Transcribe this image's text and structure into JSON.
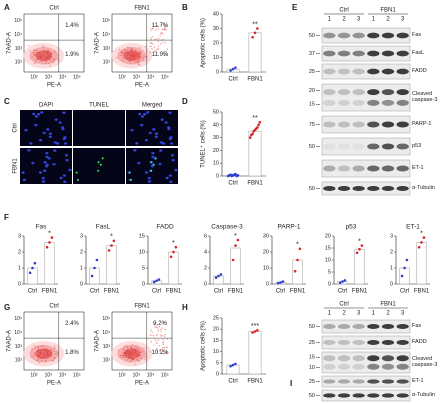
{
  "panel_labels": [
    "A",
    "B",
    "C",
    "D",
    "E",
    "F",
    "G",
    "H",
    "I"
  ],
  "flow_axes": {
    "x_label": "PE-A",
    "y_label": "7AAD-A",
    "ticks": [
      "10²",
      "10³",
      "10⁴",
      "10⁵"
    ]
  },
  "flow_plots": [
    {
      "title": "Ctrl",
      "upper_right": "1.4%",
      "lower_right": "1.9%"
    },
    {
      "title": "FBN1",
      "upper_right": "11.7%",
      "lower_right": "11.0%"
    },
    {
      "title": "Ctrl",
      "upper_right": "2.4%",
      "lower_right": "1.8%"
    },
    {
      "title": "FBN1",
      "upper_right": "9.2%",
      "lower_right": "10.2%"
    }
  ],
  "microscopy": {
    "columns": [
      "DAPI",
      "TUNEL",
      "Merged"
    ],
    "rows": [
      "Ctrl",
      "FBN1"
    ]
  },
  "blots": [
    {
      "groups": [
        "Ctrl",
        "FBN1"
      ],
      "lanes": [
        "1",
        "2",
        "3",
        "1",
        "2",
        "3"
      ],
      "rows": [
        {
          "label": "Fas",
          "markers": [
            50
          ]
        },
        {
          "label": "FasL",
          "markers": [
            37
          ]
        },
        {
          "label": "FADD",
          "markers": [
            25
          ]
        },
        {
          "label": "Cleaved caspase-3",
          "markers": [
            20,
            15
          ]
        },
        {
          "label": "PARP-1",
          "markers": [
            75
          ]
        },
        {
          "label": "p53",
          "markers": [
            50
          ]
        },
        {
          "label": "ET-1"
        },
        {
          "label": "α-Tubulin",
          "markers": [
            50
          ]
        }
      ]
    },
    {
      "groups": [
        "Ctrl",
        "FBN1"
      ],
      "lanes": [
        "1",
        "2",
        "3",
        "1",
        "2",
        "3"
      ],
      "rows": [
        {
          "label": "Fas",
          "markers": [
            50
          ]
        },
        {
          "label": "FADD",
          "markers": [
            25
          ]
        },
        {
          "label": "Cleaved caspase-3",
          "markers": [
            15,
            10
          ]
        },
        {
          "label": "ET-1",
          "markers": [
            25
          ]
        },
        {
          "label": "α-Tubulin",
          "markers": [
            50
          ]
        }
      ]
    }
  ],
  "chart_data": [
    {
      "type": "bar",
      "y_label": "Apoptotic cells (%)",
      "categories": [
        "Ctrl",
        "FBN1"
      ],
      "values": [
        2,
        27
      ],
      "points": [
        [
          1,
          2,
          3
        ],
        [
          24,
          27,
          30
        ]
      ],
      "colors": [
        "#2d3fcc",
        "#d7262b"
      ],
      "ylim": [
        0,
        40
      ],
      "yticks": [
        0,
        10,
        20,
        30,
        40
      ],
      "annotation": "**"
    },
    {
      "type": "bar",
      "y_label": "TUNEL⁺ cells (%)",
      "categories": [
        "Ctrl",
        "FBN1"
      ],
      "values": [
        0.6,
        35
      ],
      "points": [
        [
          0,
          0.5,
          1,
          0,
          0.5,
          1,
          1.5,
          0,
          0.5
        ],
        [
          30,
          32,
          33,
          35,
          36,
          37,
          38,
          40,
          42
        ]
      ],
      "colors": [
        "#2d3fcc",
        "#d7262b"
      ],
      "ylim": [
        0,
        50
      ],
      "yticks": [
        0,
        10,
        20,
        30,
        40,
        50
      ],
      "annotation": "**"
    },
    {
      "type": "bar",
      "title": "Fas",
      "categories": [
        "Ctrl",
        "FBN1"
      ],
      "values": [
        1,
        2.6
      ],
      "points": [
        [
          0.7,
          1,
          1.3
        ],
        [
          2.3,
          2.6,
          2.9
        ]
      ],
      "colors": [
        "#2d3fcc",
        "#d7262b"
      ],
      "ylim": [
        0,
        3
      ],
      "yticks": [
        0,
        1,
        2,
        3
      ],
      "annotation": "*"
    },
    {
      "type": "bar",
      "title": "FasL",
      "categories": [
        "Ctrl",
        "FBN1"
      ],
      "values": [
        1,
        2.4
      ],
      "points": [
        [
          0.5,
          1,
          1.5
        ],
        [
          2.1,
          2.4,
          2.7
        ]
      ],
      "colors": [
        "#2d3fcc",
        "#d7262b"
      ],
      "ylim": [
        0,
        3
      ],
      "yticks": [
        0,
        1,
        2,
        3
      ],
      "annotation": "*"
    },
    {
      "type": "bar",
      "title": "FADD",
      "categories": [
        "Ctrl",
        "FBN1"
      ],
      "values": [
        1,
        10
      ],
      "points": [
        [
          0.6,
          1,
          1.4
        ],
        [
          8.5,
          10,
          11.5
        ]
      ],
      "colors": [
        "#2d3fcc",
        "#d7262b"
      ],
      "ylim": [
        0,
        15
      ],
      "yticks": [
        0,
        5,
        10,
        15
      ],
      "annotation": "*"
    },
    {
      "type": "bar",
      "title": "Caspase-3",
      "categories": [
        "Ctrl",
        "FBN1"
      ],
      "values": [
        1,
        4.5
      ],
      "points": [
        [
          0.8,
          1,
          1.2
        ],
        [
          3,
          4.8,
          5.5
        ]
      ],
      "colors": [
        "#2d3fcc",
        "#d7262b"
      ],
      "ylim": [
        0,
        6
      ],
      "yticks": [
        0,
        2,
        4,
        6
      ],
      "annotation": "*"
    },
    {
      "type": "bar",
      "title": "PARP-1",
      "categories": [
        "Ctrl",
        "FBN1"
      ],
      "values": [
        1,
        15
      ],
      "points": [
        [
          0.5,
          1,
          1.5
        ],
        [
          8,
          15,
          22
        ]
      ],
      "colors": [
        "#2d3fcc",
        "#d7262b"
      ],
      "ylim": [
        0,
        30
      ],
      "yticks": [
        0,
        10,
        20,
        30
      ],
      "annotation": "*"
    },
    {
      "type": "bar",
      "title": "p53",
      "categories": [
        "Ctrl",
        "FBN1"
      ],
      "values": [
        1,
        14.5
      ],
      "points": [
        [
          0.5,
          1,
          1.5
        ],
        [
          13,
          14.5,
          16
        ]
      ],
      "colors": [
        "#2d3fcc",
        "#d7262b"
      ],
      "ylim": [
        0,
        20
      ],
      "yticks": [
        0,
        5,
        10,
        15,
        20
      ],
      "annotation": "*"
    },
    {
      "type": "bar",
      "title": "ET-1",
      "categories": [
        "Ctrl",
        "FBN1"
      ],
      "values": [
        1,
        2.6
      ],
      "points": [
        [
          0.5,
          1,
          1.5
        ],
        [
          2.3,
          2.6,
          2.9
        ]
      ],
      "colors": [
        "#2d3fcc",
        "#d7262b"
      ],
      "ylim": [
        0,
        3
      ],
      "yticks": [
        0,
        1,
        2,
        3
      ],
      "annotation": "*"
    },
    {
      "type": "bar",
      "y_label": "Apoptotic cells (%)",
      "categories": [
        "Ctrl",
        "FBN1"
      ],
      "values": [
        4,
        19
      ],
      "points": [
        [
          3.5,
          4,
          4.5
        ],
        [
          18.5,
          19,
          19.5
        ]
      ],
      "colors": [
        "#2d3fcc",
        "#d7262b"
      ],
      "ylim": [
        0,
        25
      ],
      "yticks": [
        0,
        5,
        10,
        15,
        20,
        25
      ],
      "annotation": "***"
    }
  ]
}
